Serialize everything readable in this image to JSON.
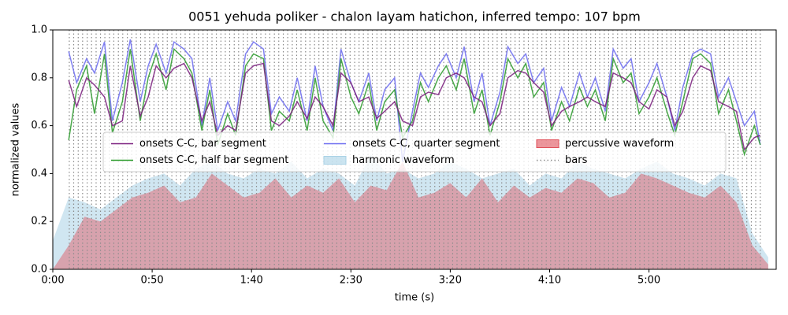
{
  "chart_data": {
    "type": "line",
    "title": "0051 yehuda poliker - chalon layam hatichon, inferred tempo: 107 bpm",
    "xlabel": "time (s)",
    "ylabel": "normalized values",
    "xlim": [
      0,
      364
    ],
    "ylim": [
      0,
      1
    ],
    "xticks": [
      {
        "value": 0,
        "label": "0:00"
      },
      {
        "value": 50,
        "label": "0:50"
      },
      {
        "value": 100,
        "label": "1:40"
      },
      {
        "value": 150,
        "label": "2:30"
      },
      {
        "value": 200,
        "label": "3:20"
      },
      {
        "value": 250,
        "label": "4:10"
      },
      {
        "value": 300,
        "label": "5:00"
      }
    ],
    "yticks": [
      {
        "value": 0,
        "label": "0.0"
      },
      {
        "value": 0.2,
        "label": "0.2"
      },
      {
        "value": 0.4,
        "label": "0.4"
      },
      {
        "value": 0.6,
        "label": "0.6"
      },
      {
        "value": 0.8,
        "label": "0.8"
      },
      {
        "value": 1,
        "label": "1.0"
      }
    ],
    "legend": "center",
    "series": [
      {
        "name": "onsets C-C, bar segment",
        "style": "line",
        "color": "#7a1e7e",
        "x": [
          8,
          12,
          17,
          21,
          26,
          30,
          35,
          39,
          44,
          48,
          52,
          57,
          61,
          66,
          70,
          75,
          79,
          83,
          88,
          92,
          97,
          101,
          106,
          110,
          114,
          119,
          123,
          128,
          132,
          136,
          141,
          145,
          150,
          154,
          159,
          163,
          167,
          172,
          176,
          181,
          185,
          189,
          194,
          198,
          203,
          207,
          212,
          216,
          220,
          225,
          229,
          234,
          238,
          242,
          247,
          251,
          256,
          260,
          265,
          269,
          273,
          278,
          282,
          287,
          291,
          295,
          300,
          304,
          309,
          313,
          317,
          322,
          326,
          331,
          335,
          340,
          344,
          348,
          353,
          356
        ],
        "values": [
          0.79,
          0.68,
          0.8,
          0.77,
          0.72,
          0.6,
          0.62,
          0.85,
          0.64,
          0.72,
          0.85,
          0.8,
          0.84,
          0.86,
          0.8,
          0.62,
          0.7,
          0.56,
          0.6,
          0.58,
          0.82,
          0.85,
          0.86,
          0.62,
          0.6,
          0.64,
          0.7,
          0.63,
          0.72,
          0.68,
          0.6,
          0.82,
          0.78,
          0.7,
          0.72,
          0.63,
          0.66,
          0.7,
          0.62,
          0.6,
          0.72,
          0.74,
          0.73,
          0.8,
          0.82,
          0.8,
          0.72,
          0.7,
          0.6,
          0.65,
          0.8,
          0.83,
          0.82,
          0.78,
          0.74,
          0.6,
          0.66,
          0.68,
          0.7,
          0.72,
          0.7,
          0.68,
          0.82,
          0.8,
          0.78,
          0.7,
          0.67,
          0.75,
          0.72,
          0.6,
          0.66,
          0.8,
          0.85,
          0.83,
          0.7,
          0.68,
          0.66,
          0.5,
          0.55,
          0.56
        ]
      },
      {
        "name": "onsets C-C, half bar segment",
        "style": "line",
        "color": "#2a9a2a",
        "x": [
          8,
          12,
          17,
          21,
          26,
          30,
          35,
          39,
          44,
          48,
          52,
          57,
          61,
          66,
          70,
          75,
          79,
          83,
          88,
          92,
          97,
          101,
          106,
          110,
          114,
          119,
          123,
          128,
          132,
          136,
          141,
          145,
          150,
          154,
          159,
          163,
          167,
          172,
          176,
          181,
          185,
          189,
          194,
          198,
          203,
          207,
          212,
          216,
          220,
          225,
          229,
          234,
          238,
          242,
          247,
          251,
          256,
          260,
          265,
          269,
          273,
          278,
          282,
          287,
          291,
          295,
          300,
          304,
          309,
          313,
          317,
          322,
          326,
          331,
          335,
          340,
          344,
          348,
          353,
          356
        ],
        "values": [
          0.54,
          0.75,
          0.85,
          0.65,
          0.9,
          0.57,
          0.7,
          0.92,
          0.62,
          0.8,
          0.9,
          0.75,
          0.92,
          0.88,
          0.82,
          0.58,
          0.75,
          0.52,
          0.65,
          0.56,
          0.85,
          0.9,
          0.88,
          0.58,
          0.66,
          0.62,
          0.75,
          0.58,
          0.8,
          0.62,
          0.55,
          0.88,
          0.72,
          0.65,
          0.78,
          0.58,
          0.7,
          0.75,
          0.55,
          0.62,
          0.78,
          0.7,
          0.8,
          0.85,
          0.75,
          0.88,
          0.65,
          0.75,
          0.56,
          0.7,
          0.88,
          0.8,
          0.86,
          0.72,
          0.78,
          0.58,
          0.7,
          0.62,
          0.76,
          0.68,
          0.75,
          0.62,
          0.88,
          0.78,
          0.82,
          0.65,
          0.72,
          0.8,
          0.66,
          0.56,
          0.7,
          0.88,
          0.9,
          0.86,
          0.65,
          0.75,
          0.62,
          0.48,
          0.6,
          0.52
        ]
      },
      {
        "name": "onsets C-C, quarter segment",
        "style": "line",
        "color": "#6b6bf0",
        "x": [
          8,
          12,
          17,
          21,
          26,
          30,
          35,
          39,
          44,
          48,
          52,
          57,
          61,
          66,
          70,
          75,
          79,
          83,
          88,
          92,
          97,
          101,
          106,
          110,
          114,
          119,
          123,
          128,
          132,
          136,
          141,
          145,
          150,
          154,
          159,
          163,
          167,
          172,
          176,
          181,
          185,
          189,
          194,
          198,
          203,
          207,
          212,
          216,
          220,
          225,
          229,
          234,
          238,
          242,
          247,
          251,
          256,
          260,
          265,
          269,
          273,
          278,
          282,
          287,
          291,
          295,
          300,
          304,
          309,
          313,
          317,
          322,
          326,
          331,
          335,
          340,
          344,
          348,
          353,
          356
        ],
        "values": [
          0.91,
          0.78,
          0.88,
          0.82,
          0.95,
          0.62,
          0.78,
          0.96,
          0.7,
          0.85,
          0.94,
          0.82,
          0.95,
          0.92,
          0.88,
          0.6,
          0.8,
          0.58,
          0.7,
          0.62,
          0.9,
          0.95,
          0.92,
          0.65,
          0.72,
          0.66,
          0.8,
          0.62,
          0.85,
          0.68,
          0.58,
          0.92,
          0.78,
          0.7,
          0.82,
          0.62,
          0.75,
          0.8,
          0.45,
          0.66,
          0.82,
          0.76,
          0.85,
          0.9,
          0.8,
          0.93,
          0.7,
          0.82,
          0.6,
          0.74,
          0.93,
          0.86,
          0.9,
          0.78,
          0.84,
          0.62,
          0.76,
          0.68,
          0.82,
          0.72,
          0.8,
          0.66,
          0.92,
          0.84,
          0.88,
          0.7,
          0.78,
          0.86,
          0.72,
          0.58,
          0.76,
          0.9,
          0.92,
          0.9,
          0.72,
          0.8,
          0.7,
          0.6,
          0.66,
          0.52
        ]
      },
      {
        "name": "harmonic waveform",
        "style": "area",
        "color": "#a9d2e6",
        "x": [
          0,
          8,
          16,
          24,
          32,
          40,
          48,
          56,
          64,
          72,
          80,
          88,
          96,
          104,
          112,
          120,
          128,
          136,
          144,
          152,
          160,
          168,
          176,
          184,
          192,
          200,
          208,
          216,
          224,
          232,
          240,
          248,
          256,
          264,
          272,
          280,
          288,
          296,
          304,
          312,
          320,
          328,
          336,
          344,
          352,
          360
        ],
        "values": [
          0.12,
          0.3,
          0.28,
          0.25,
          0.3,
          0.35,
          0.38,
          0.4,
          0.35,
          0.42,
          0.45,
          0.4,
          0.38,
          0.42,
          0.4,
          0.45,
          0.38,
          0.42,
          0.4,
          0.35,
          0.48,
          0.4,
          0.42,
          0.38,
          0.4,
          0.45,
          0.42,
          0.38,
          0.4,
          0.42,
          0.35,
          0.4,
          0.38,
          0.45,
          0.42,
          0.4,
          0.38,
          0.42,
          0.45,
          0.4,
          0.38,
          0.35,
          0.4,
          0.38,
          0.15,
          0.05
        ]
      },
      {
        "name": "percussive waveform",
        "style": "area",
        "color": "#e0505a",
        "x": [
          0,
          8,
          16,
          24,
          32,
          40,
          48,
          56,
          64,
          72,
          80,
          88,
          96,
          104,
          112,
          120,
          128,
          136,
          144,
          152,
          160,
          168,
          176,
          184,
          192,
          200,
          208,
          216,
          224,
          232,
          240,
          248,
          256,
          264,
          272,
          280,
          288,
          296,
          304,
          312,
          320,
          328,
          336,
          344,
          352,
          360
        ],
        "values": [
          0,
          0.1,
          0.22,
          0.2,
          0.25,
          0.3,
          0.32,
          0.35,
          0.28,
          0.3,
          0.4,
          0.35,
          0.3,
          0.32,
          0.38,
          0.3,
          0.35,
          0.32,
          0.38,
          0.28,
          0.35,
          0.33,
          0.45,
          0.3,
          0.32,
          0.36,
          0.3,
          0.38,
          0.28,
          0.35,
          0.3,
          0.34,
          0.32,
          0.38,
          0.36,
          0.3,
          0.32,
          0.4,
          0.38,
          0.35,
          0.32,
          0.3,
          0.35,
          0.28,
          0.1,
          0.02
        ]
      },
      {
        "name": "bars",
        "style": "vlines",
        "color": "#8a8a8a",
        "x": [
          8.3,
          10.5,
          12.8,
          15.0,
          17.3,
          19.5,
          21.8,
          24.0,
          26.2,
          28.5,
          30.7,
          33.0,
          35.2,
          37.5,
          39.7,
          42.0,
          44.2,
          46.4,
          48.7,
          50.9,
          53.2,
          55.4,
          57.6,
          59.9,
          62.1,
          64.4,
          66.6,
          68.9,
          71.1,
          73.3,
          75.6,
          77.8,
          80.1,
          82.3,
          84.6,
          86.8,
          89.0,
          91.3,
          93.5,
          95.8,
          98.0,
          100.3,
          102.5,
          104.7,
          107.0,
          109.2,
          111.5,
          113.7,
          116.0,
          118.2,
          120.5,
          122.7,
          124.9,
          127.2,
          129.4,
          131.7,
          133.9,
          136.1,
          138.4,
          140.6,
          142.9,
          145.1,
          147.4,
          149.6,
          151.9,
          154.1,
          156.3,
          158.6,
          160.8,
          163.1,
          165.3,
          167.6,
          169.8,
          172.0,
          174.3,
          176.5,
          178.8,
          181.0,
          183.3,
          185.5,
          187.7,
          190.0,
          192.2,
          194.5,
          196.7,
          198.9,
          201.2,
          203.4,
          205.7,
          207.9,
          210.2,
          212.4,
          214.7,
          216.9,
          219.1,
          221.4,
          223.6,
          225.9,
          228.1,
          230.4,
          232.6,
          234.8,
          237.1,
          239.3,
          241.6,
          243.8,
          246.1,
          248.3,
          250.5,
          252.8,
          255.0,
          257.3,
          259.5,
          261.8,
          264.0,
          266.2,
          268.5,
          270.7,
          273.0,
          275.2,
          277.5,
          279.7,
          281.9,
          284.2,
          286.4,
          288.7,
          290.9,
          293.2,
          295.4,
          297.6,
          299.9,
          302.1,
          304.4,
          306.6,
          308.9,
          311.1,
          313.4,
          315.6,
          317.8,
          320.1,
          322.3,
          324.6,
          326.8,
          329.1,
          331.3,
          333.5,
          335.8,
          338.0,
          340.3,
          342.5,
          344.8,
          347.0,
          349.2,
          351.5,
          353.7,
          356.0
        ]
      }
    ]
  }
}
